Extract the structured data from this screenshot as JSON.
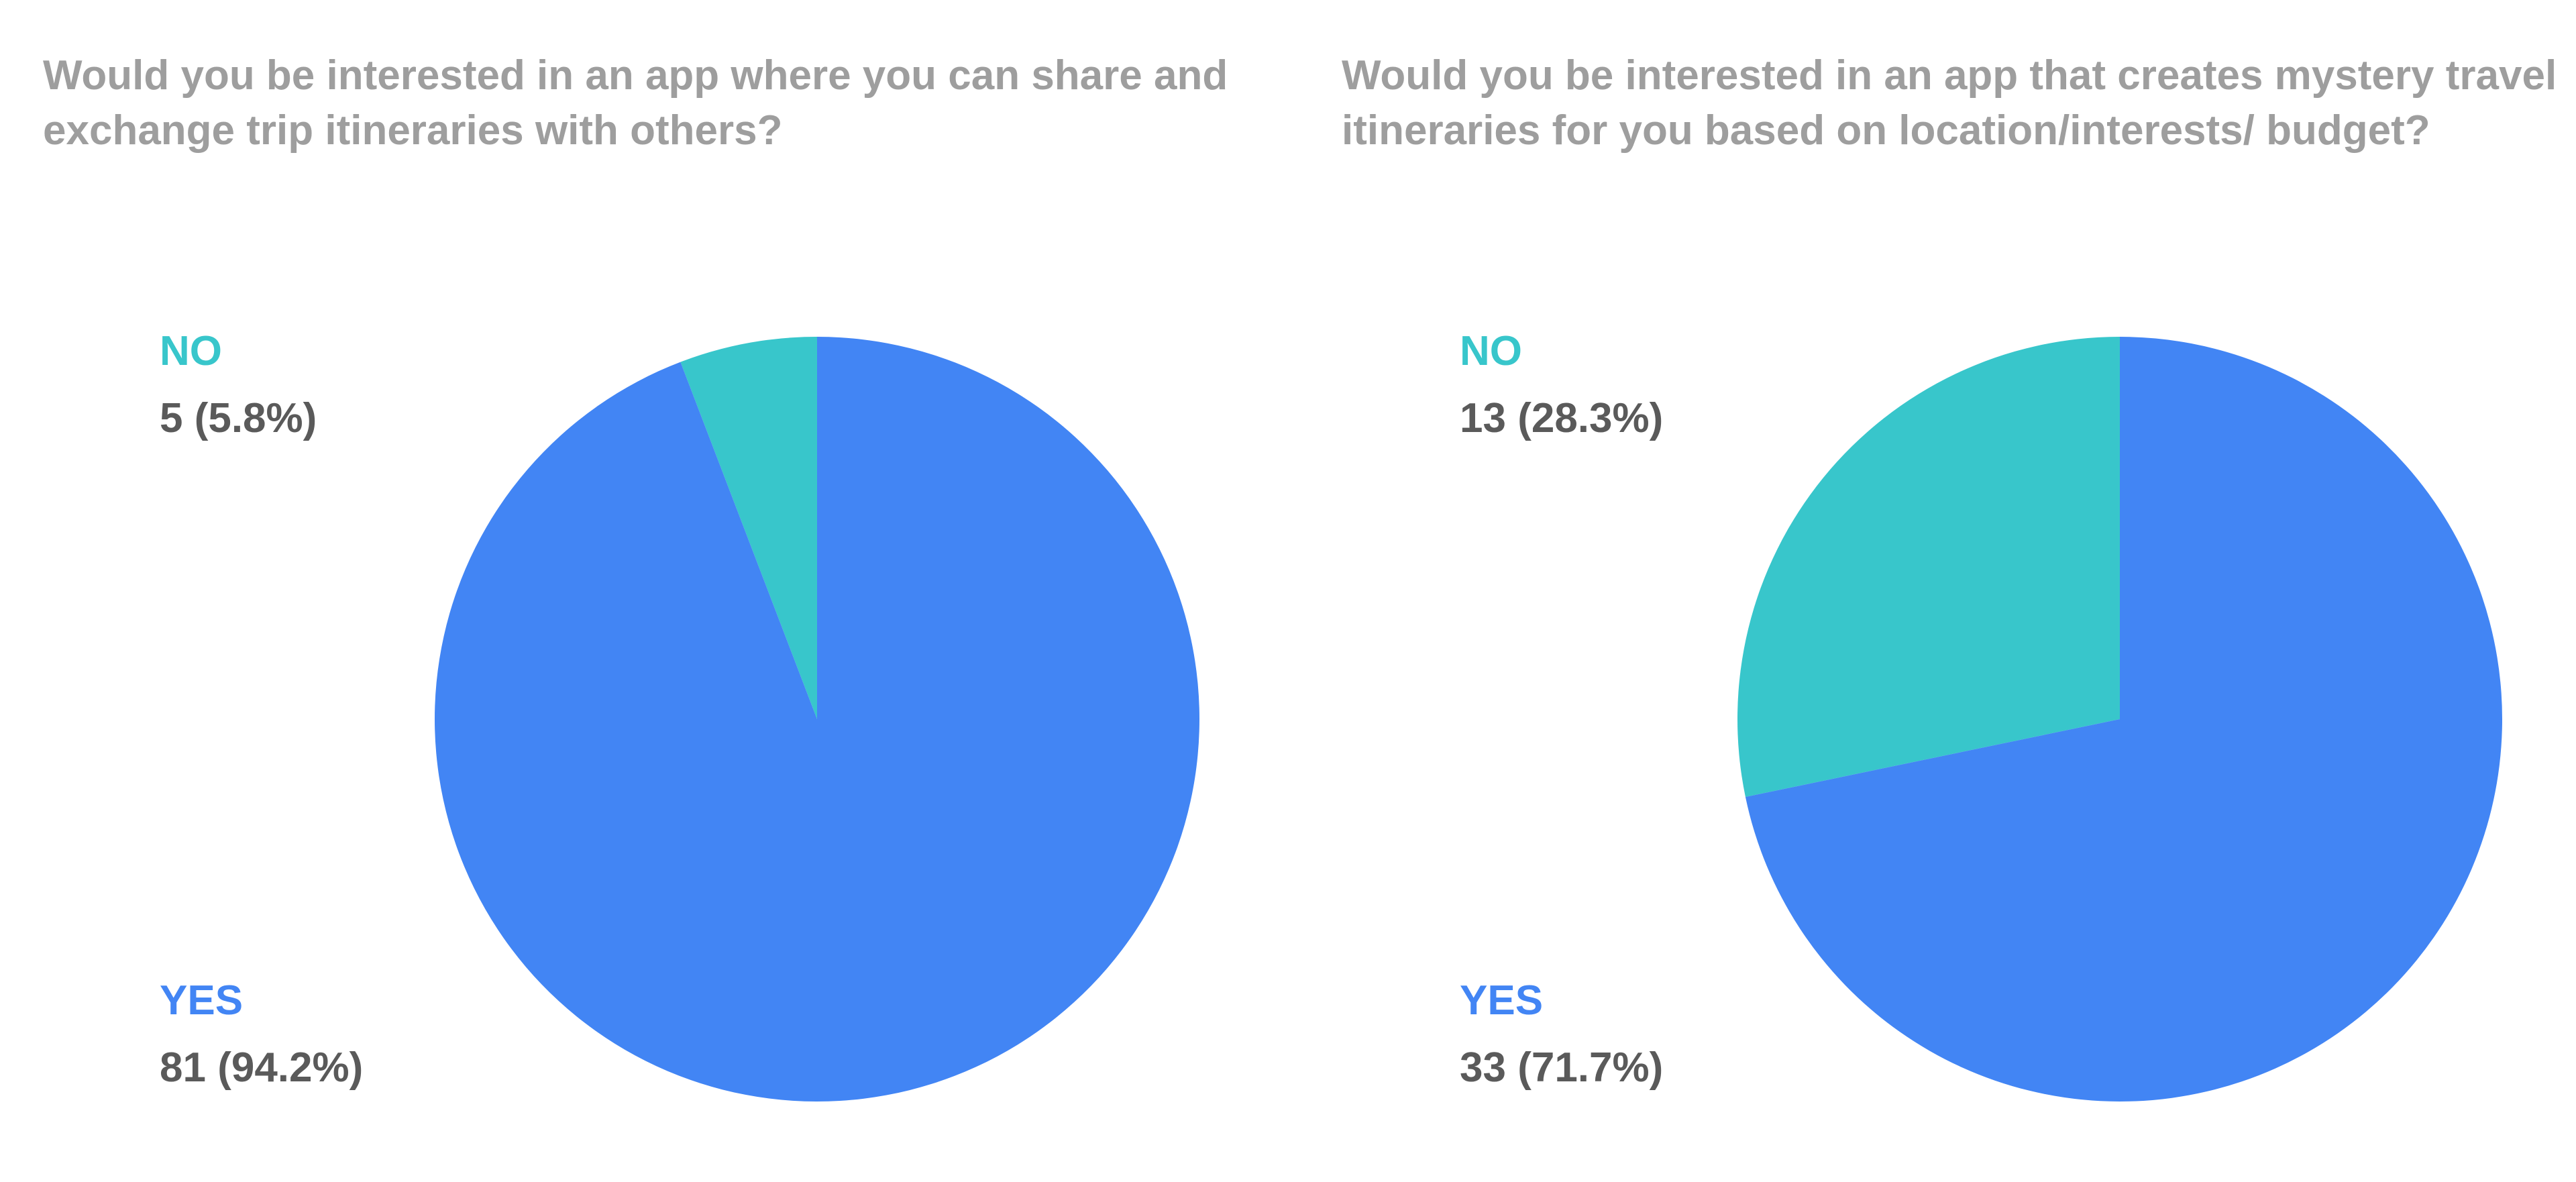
{
  "colors": {
    "yes": "#4285f4",
    "no": "#38c6cb",
    "title": "#9e9e9e",
    "value_text": "#5a5a5a"
  },
  "chart_data": [
    {
      "type": "pie",
      "title": "Would you be interested in an app where you can share and exchange trip itineraries with others?",
      "slices": [
        {
          "label": "NO",
          "value": 5,
          "percent_label": "5 (5.8%)",
          "color": "#38c6cb"
        },
        {
          "label": "YES",
          "value": 81,
          "percent_label": "81 (94.2%)",
          "color": "#4285f4"
        }
      ],
      "legend_position": "left"
    },
    {
      "type": "pie",
      "title": "Would you be interested in an app that creates mystery travel itineraries for you based on location/interests/ budget?",
      "slices": [
        {
          "label": "NO",
          "value": 13,
          "percent_label": "13 (28.3%)",
          "color": "#38c6cb"
        },
        {
          "label": "YES",
          "value": 33,
          "percent_label": "33 (71.7%)",
          "color": "#4285f4"
        }
      ],
      "legend_position": "left"
    }
  ]
}
